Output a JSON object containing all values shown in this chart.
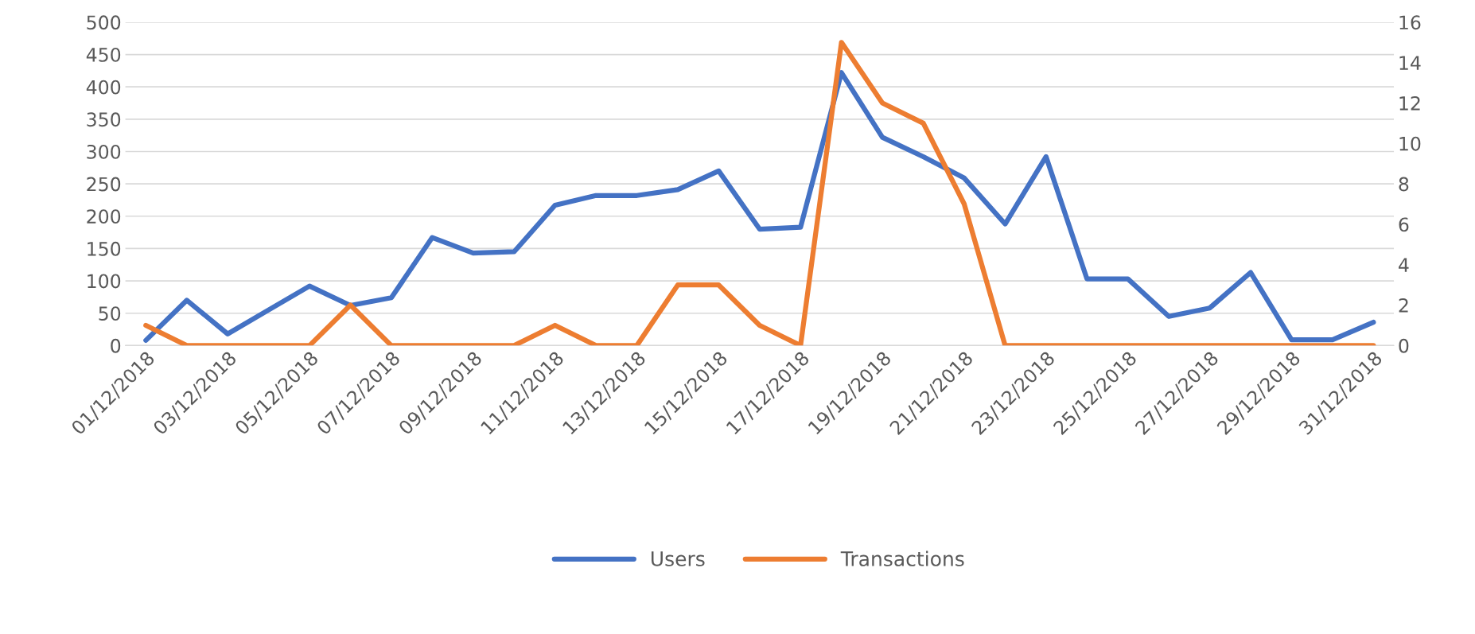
{
  "chart_data": {
    "type": "line",
    "categories": [
      "01/12/2018",
      null,
      "03/12/2018",
      null,
      "05/12/2018",
      null,
      "07/12/2018",
      null,
      "09/12/2018",
      null,
      "11/12/2018",
      null,
      "13/12/2018",
      null,
      "15/12/2018",
      null,
      "17/12/2018",
      null,
      "19/12/2018",
      null,
      "21/12/2018",
      null,
      "23/12/2018",
      null,
      "25/12/2018",
      null,
      "27/12/2018",
      null,
      "29/12/2018",
      null,
      "31/12/2018"
    ],
    "series": [
      {
        "name": "Users",
        "color": "#4472c4",
        "values": [
          8,
          70,
          18,
          55,
          92,
          62,
          74,
          167,
          143,
          145,
          217,
          232,
          232,
          241,
          270,
          180,
          183,
          422,
          322,
          292,
          259,
          188,
          292,
          103,
          103,
          45,
          58,
          113,
          9,
          9,
          36
        ]
      },
      {
        "name": "Transactions",
        "color": "#ed7d31",
        "axis": "y2",
        "values": [
          1,
          0,
          0,
          0,
          0,
          2,
          0,
          0,
          0,
          0,
          1,
          0,
          0,
          3,
          3,
          1,
          0,
          15,
          12,
          11,
          7,
          0,
          0,
          0,
          0,
          0,
          0,
          0,
          0,
          0,
          0
        ]
      }
    ],
    "ylim": [
      0,
      500
    ],
    "yticks": [
      0,
      50,
      100,
      150,
      200,
      250,
      300,
      350,
      400,
      450,
      500
    ],
    "y2lim": [
      0,
      16
    ],
    "y2ticks": [
      0,
      2,
      4,
      6,
      8,
      10,
      12,
      14,
      16
    ],
    "grid": "y",
    "legend": "bottom",
    "marker": "none",
    "line_style": "solid"
  }
}
